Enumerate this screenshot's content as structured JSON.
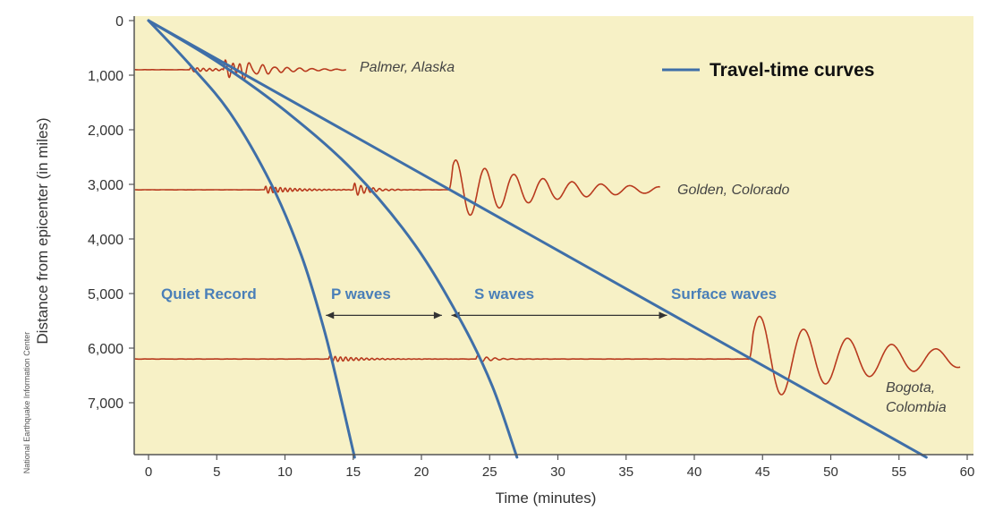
{
  "colors": {
    "background": "#f7f1c6",
    "curve": "#3f6fa8",
    "seismogram": "#b83a1e",
    "arrow": "#333333"
  },
  "chart_data": {
    "type": "line",
    "xlabel": "Time (minutes)",
    "ylabel": "Distance from epicenter (in miles)",
    "xlim": [
      -1,
      60
    ],
    "ylim": [
      8000,
      0
    ],
    "x_ticks": [
      "0",
      "5",
      "10",
      "15",
      "20",
      "25",
      "30",
      "35",
      "40",
      "45",
      "50",
      "55",
      "60"
    ],
    "y_ticks": [
      "0",
      "1,000",
      "2,000",
      "3,000",
      "4,000",
      "5,000",
      "6,000",
      "7,000"
    ],
    "legend": {
      "label": "Travel-time curves",
      "placement": "top-right"
    },
    "series": [
      {
        "kind": "P wave travel-time curve",
        "points": [
          [
            0,
            0
          ],
          [
            3,
            800
          ],
          [
            6,
            1700
          ],
          [
            9,
            3000
          ],
          [
            11.2,
            4300
          ],
          [
            12.8,
            5600
          ],
          [
            13.8,
            6600
          ],
          [
            15.1,
            8000
          ]
        ]
      },
      {
        "kind": "S wave travel-time curve",
        "points": [
          [
            0,
            0
          ],
          [
            5,
            750
          ],
          [
            10,
            1650
          ],
          [
            15,
            2750
          ],
          [
            19.5,
            4100
          ],
          [
            23,
            5550
          ],
          [
            25.2,
            6700
          ],
          [
            27,
            8000
          ]
        ]
      },
      {
        "kind": "Surface wave travel-time curve",
        "points": [
          [
            0,
            0
          ],
          [
            57,
            8000
          ]
        ]
      }
    ],
    "seismograms": [
      {
        "station": "Palmer, Alaska",
        "distance": 900,
        "start": -1,
        "end": 14.5,
        "p_arrival": 3,
        "s_arrival": 5.5,
        "surface_arrival": 6.3
      },
      {
        "station": "Golden, Colorado",
        "distance": 3100,
        "start": -1,
        "end": 37.5,
        "p_arrival": 8.5,
        "s_arrival": 15,
        "surface_arrival": 22
      },
      {
        "station_line1": "Bogota,",
        "station_line2": "Colombia",
        "distance": 6200,
        "start": -1,
        "end": 59.5,
        "p_arrival": 13.2,
        "s_arrival": 24,
        "surface_arrival": 44
      }
    ],
    "regions": [
      {
        "label": "Quiet Record"
      },
      {
        "label": "P waves",
        "from": 13,
        "to": 21.5
      },
      {
        "label": "S waves",
        "from": 22.2,
        "to": 38
      },
      {
        "label": "Surface waves"
      }
    ],
    "arrow_distance": 5400
  },
  "credit": "National Earthquake Information Center"
}
